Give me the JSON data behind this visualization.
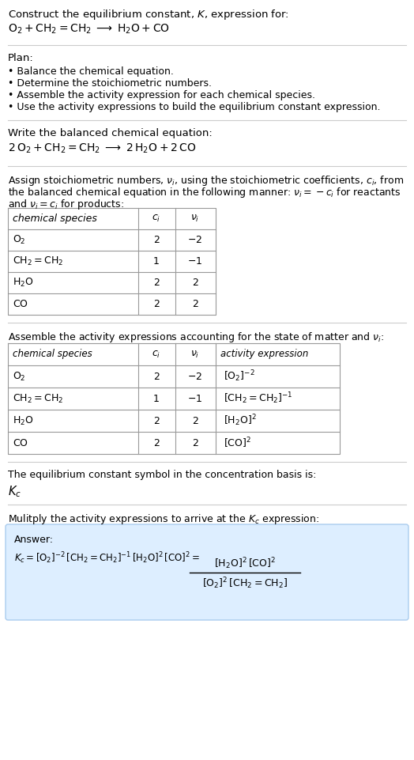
{
  "title_line1": "Construct the equilibrium constant, $K$, expression for:",
  "title_line2": "$\\mathrm{O_2 + CH_2{=}CH_2 \\;\\longrightarrow\\; H_2O + CO}$",
  "plan_header": "Plan:",
  "plan_bullets": [
    "• Balance the chemical equation.",
    "• Determine the stoichiometric numbers.",
    "• Assemble the activity expression for each chemical species.",
    "• Use the activity expressions to build the equilibrium constant expression."
  ],
  "balanced_header": "Write the balanced chemical equation:",
  "balanced_eq": "$\\mathrm{2\\,O_2 + CH_2{=}CH_2 \\;\\longrightarrow\\; 2\\,H_2O + 2\\,CO}$",
  "stoich_header1": "Assign stoichiometric numbers, $\\nu_i$, using the stoichiometric coefficients, $c_i$, from",
  "stoich_header2": "the balanced chemical equation in the following manner: $\\nu_i = -c_i$ for reactants",
  "stoich_header3": "and $\\nu_i = c_i$ for products:",
  "table1_headers": [
    "chemical species",
    "$c_i$",
    "$\\nu_i$"
  ],
  "table1_rows": [
    [
      "$\\mathrm{O_2}$",
      "2",
      "$-2$"
    ],
    [
      "$\\mathrm{CH_2{=}CH_2}$",
      "1",
      "$-1$"
    ],
    [
      "$\\mathrm{H_2O}$",
      "2",
      "2"
    ],
    [
      "$\\mathrm{CO}$",
      "2",
      "2"
    ]
  ],
  "activity_header": "Assemble the activity expressions accounting for the state of matter and $\\nu_i$:",
  "table2_headers": [
    "chemical species",
    "$c_i$",
    "$\\nu_i$",
    "activity expression"
  ],
  "table2_rows": [
    [
      "$\\mathrm{O_2}$",
      "2",
      "$-2$",
      "$[\\mathrm{O_2}]^{-2}$"
    ],
    [
      "$\\mathrm{CH_2{=}CH_2}$",
      "1",
      "$-1$",
      "$[\\mathrm{CH_2{=}CH_2}]^{-1}$"
    ],
    [
      "$\\mathrm{H_2O}$",
      "2",
      "2",
      "$[\\mathrm{H_2O}]^{2}$"
    ],
    [
      "$\\mathrm{CO}$",
      "2",
      "2",
      "$[\\mathrm{CO}]^{2}$"
    ]
  ],
  "kc_header": "The equilibrium constant symbol in the concentration basis is:",
  "kc_symbol": "$K_c$",
  "multiply_header": "Mulitply the activity expressions to arrive at the $K_c$ expression:",
  "answer_label": "Answer:",
  "answer_lhs": "$K_c = [\\mathrm{O_2}]^{-2}\\,[\\mathrm{CH_2{=}CH_2}]^{-1}\\,[\\mathrm{H_2O}]^{2}\\,[\\mathrm{CO}]^{2} = $",
  "answer_num": "$[\\mathrm{H_2O}]^{2}\\,[\\mathrm{CO}]^{2}$",
  "answer_den": "$[\\mathrm{O_2}]^{2}\\,[\\mathrm{CH_2{=}CH_2}]$",
  "bg_color": "#ffffff",
  "answer_box_color": "#ddeeff",
  "text_color": "#000000",
  "line_color": "#cccccc",
  "table_color": "#999999"
}
